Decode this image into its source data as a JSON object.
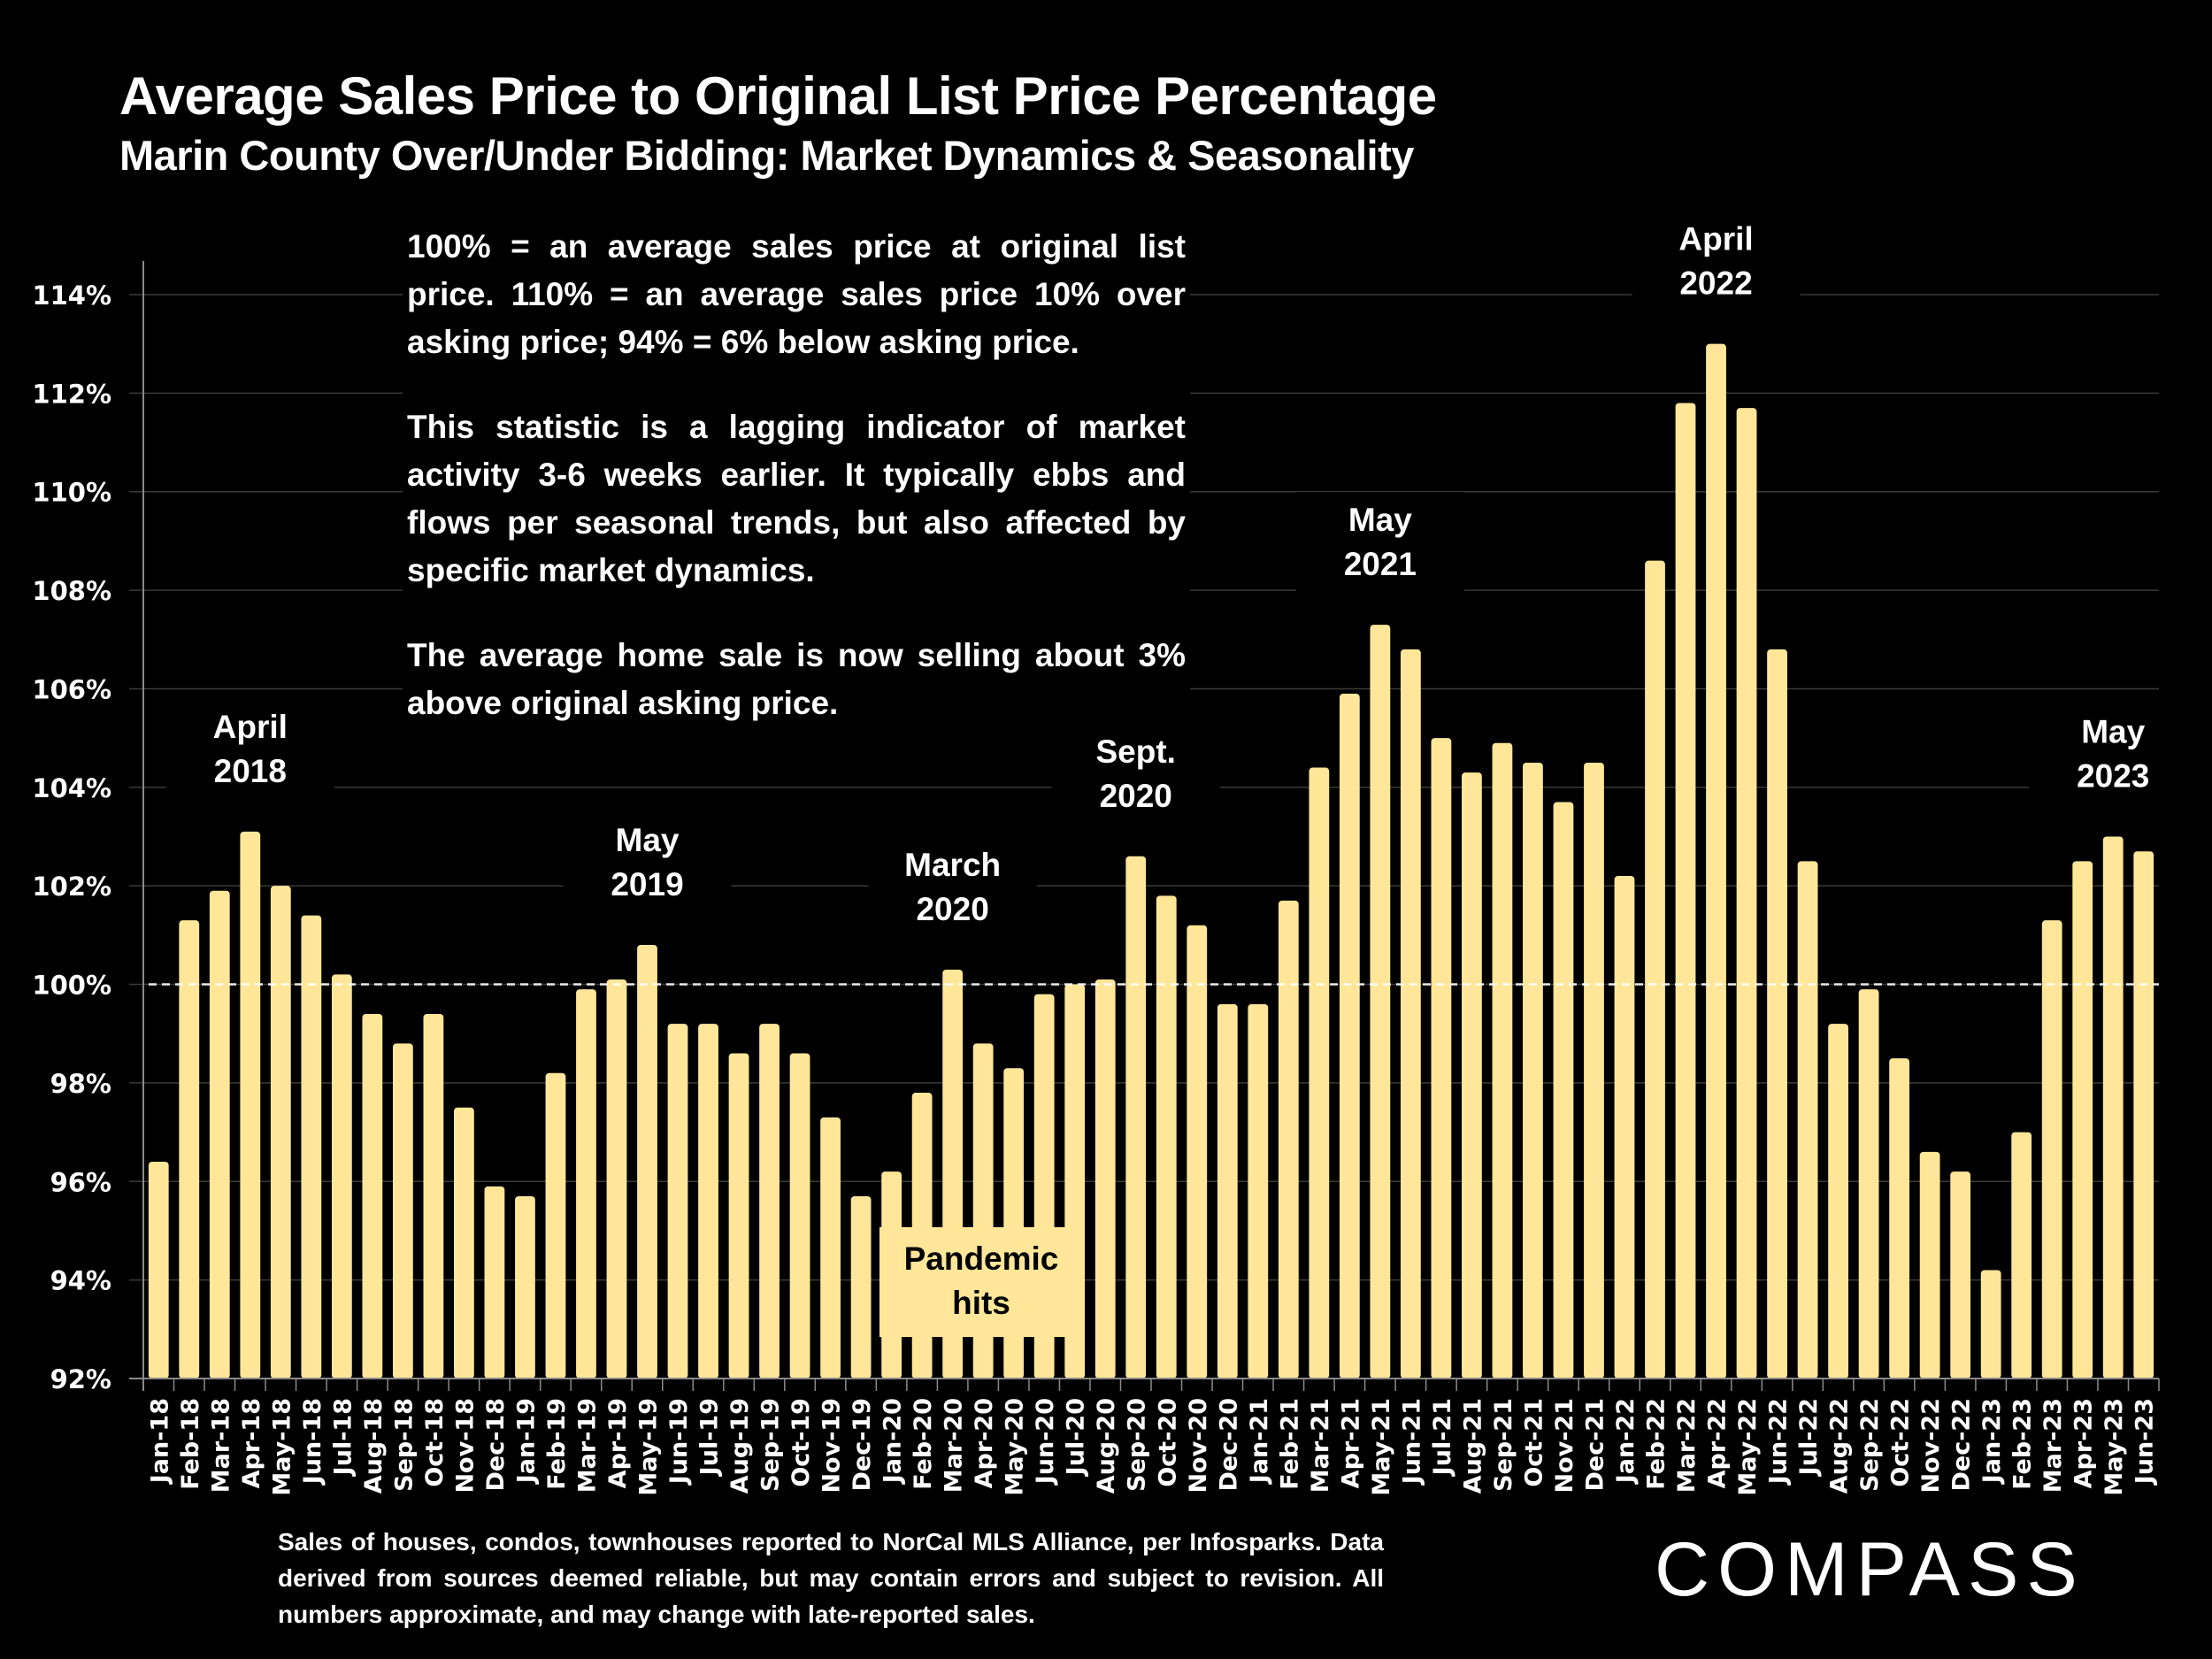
{
  "header": {
    "title": "Average Sales Price to Original List Price Percentage",
    "subtitle": "Marin County Over/Under Bidding: Market Dynamics & Seasonality"
  },
  "explanation": {
    "paragraphs": [
      "100% = an average sales price at original list price. 110% = an average sales price 10% over asking price; 94% = 6% below asking price.",
      "This statistic is a lagging indicator of market activity 3-6 weeks earlier. It typically ebbs and flows per seasonal trends, but also affected by specific market dynamics.",
      "The average home sale is now selling about 3% above original asking price."
    ]
  },
  "pandemic_label": [
    "Pandemic",
    "hits"
  ],
  "footer": {
    "note": "Sales of houses, condos, townhouses reported to NorCal MLS Alliance, per Infosparks. Data derived from sources deemed reliable, but may contain errors and subject to revision. All numbers approximate, and may change with late-reported sales."
  },
  "brand": {
    "logo_text": "COMPASS"
  },
  "colors": {
    "bar": "#FFE699",
    "background": "#000000",
    "grid": "#3a3a3a",
    "reference_line": "#ffffff"
  },
  "chart_data": {
    "type": "bar",
    "title": "Average Sales Price to Original List Price Percentage",
    "subtitle": "Marin County Over/Under Bidding: Market Dynamics & Seasonality",
    "xlabel": "",
    "ylabel": "",
    "ylim": [
      92,
      114
    ],
    "yticks": [
      92,
      94,
      96,
      98,
      100,
      102,
      104,
      106,
      108,
      110,
      112,
      114
    ],
    "ytick_labels": [
      "92%",
      "94%",
      "96%",
      "98%",
      "100%",
      "102%",
      "104%",
      "106%",
      "108%",
      "110%",
      "112%",
      "114%"
    ],
    "grid": true,
    "reference_line": {
      "value": 100,
      "style": "dashed"
    },
    "categories": [
      "Jan-18",
      "Feb-18",
      "Mar-18",
      "Apr-18",
      "May-18",
      "Jun-18",
      "Jul-18",
      "Aug-18",
      "Sep-18",
      "Oct-18",
      "Nov-18",
      "Dec-18",
      "Jan-19",
      "Feb-19",
      "Mar-19",
      "Apr-19",
      "May-19",
      "Jun-19",
      "Jul-19",
      "Aug-19",
      "Sep-19",
      "Oct-19",
      "Nov-19",
      "Dec-19",
      "Jan-20",
      "Feb-20",
      "Mar-20",
      "Apr-20",
      "May-20",
      "Jun-20",
      "Jul-20",
      "Aug-20",
      "Sep-20",
      "Oct-20",
      "Nov-20",
      "Dec-20",
      "Jan-21",
      "Feb-21",
      "Mar-21",
      "Apr-21",
      "May-21",
      "Jun-21",
      "Jul-21",
      "Aug-21",
      "Sep-21",
      "Oct-21",
      "Nov-21",
      "Dec-21",
      "Jan-22",
      "Feb-22",
      "Mar-22",
      "Apr-22",
      "May-22",
      "Jun-22",
      "Jul-22",
      "Aug-22",
      "Sep-22",
      "Oct-22",
      "Nov-22",
      "Dec-22",
      "Jan-23",
      "Feb-23",
      "Mar-23",
      "Apr-23",
      "May-23",
      "Jun-23"
    ],
    "values": [
      96.4,
      101.3,
      101.9,
      103.1,
      102.0,
      101.4,
      100.2,
      99.4,
      98.8,
      99.4,
      97.5,
      95.9,
      95.7,
      98.2,
      99.9,
      100.1,
      100.8,
      99.2,
      99.2,
      98.6,
      99.2,
      98.6,
      97.3,
      95.7,
      96.2,
      97.8,
      100.3,
      98.8,
      98.3,
      99.8,
      100.0,
      100.1,
      102.6,
      101.8,
      101.2,
      99.6,
      99.6,
      101.7,
      104.4,
      105.9,
      107.3,
      106.8,
      105.0,
      104.3,
      104.9,
      104.5,
      103.7,
      104.5,
      102.2,
      108.6,
      111.8,
      113.0,
      111.7,
      106.8,
      102.5,
      99.2,
      99.9,
      98.5,
      96.6,
      96.2,
      94.2,
      97.0,
      101.3,
      102.5,
      103.0,
      102.7
    ],
    "annotations": [
      {
        "category": "Apr-18",
        "lines": [
          "April",
          "2018"
        ]
      },
      {
        "category": "May-19",
        "lines": [
          "May",
          "2019"
        ]
      },
      {
        "category": "Mar-20",
        "lines": [
          "March",
          "2020"
        ]
      },
      {
        "category": "Sep-20",
        "lines": [
          "Sept.",
          "2020"
        ]
      },
      {
        "category": "May-21",
        "lines": [
          "May",
          "2021"
        ]
      },
      {
        "category": "Apr-22",
        "lines": [
          "April",
          "2022"
        ]
      },
      {
        "category": "May-23",
        "lines": [
          "May",
          "2023"
        ]
      }
    ]
  }
}
